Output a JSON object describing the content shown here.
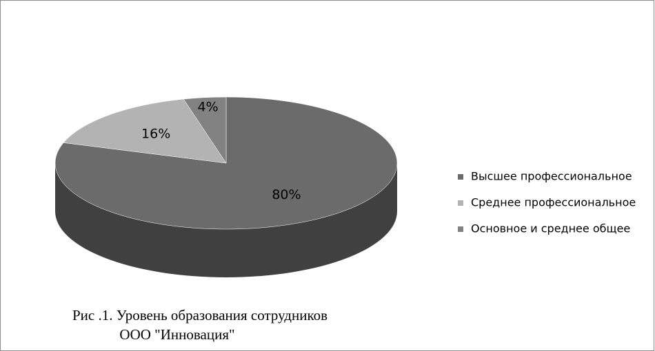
{
  "chart_data": {
    "type": "pie3d",
    "categories": [
      "Высшее профессиональное",
      "Среднее профессиональное",
      "Основное и среднее общее"
    ],
    "values": [
      80,
      16,
      4
    ],
    "value_labels": [
      "80%",
      "16%",
      "4%"
    ],
    "colors": [
      "#6b6b6b",
      "#b3b3b3",
      "#828282"
    ],
    "legend": "right",
    "caption": [
      "Рис .1. Уровень образования сотрудников",
      "ООО \"Инновация\""
    ]
  }
}
